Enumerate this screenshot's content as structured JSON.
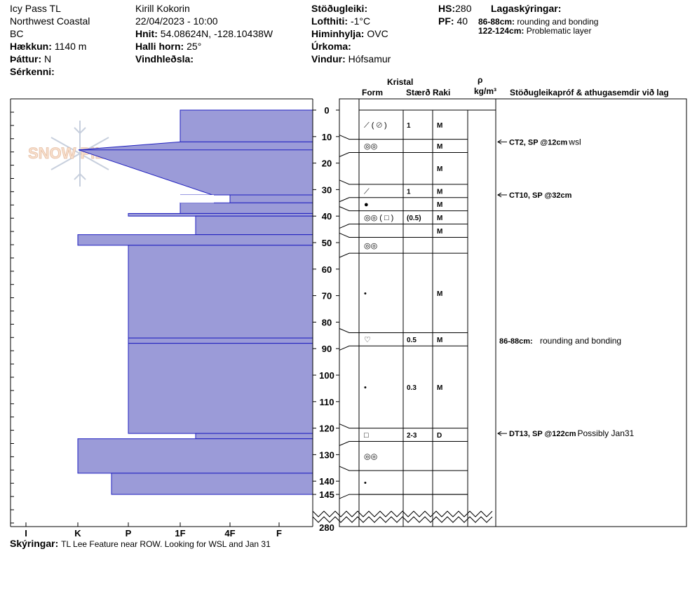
{
  "site": {
    "name": "Icy Pass TL",
    "region": "Northwest Coastal",
    "province": "BC",
    "elevation_label": "Hækkun:",
    "elevation": "1140 m",
    "aspect_label": "Þáttur:",
    "aspect": "N",
    "features_label": "Sérkenni:",
    "features": ""
  },
  "observation": {
    "observer": "Kirill Kokorin",
    "datetime": "22/04/2023 - 10:00",
    "coords_label": "Hnit:",
    "coords": "54.08624N, -128.10438W",
    "slope_label": "Halli horn:",
    "slope": "25°",
    "wind_loading_label": "Vindhleðsla:",
    "wind_loading": ""
  },
  "weather": {
    "stability_label": "Stöðugleiki:",
    "stability": "",
    "air_temp_label": "Lofthiti:",
    "air_temp": "-1°C",
    "sky_label": "Himinhylja:",
    "sky": "OVC",
    "precip_label": "Úrkoma:",
    "precip": "",
    "wind_label": "Vindur:",
    "wind": "Hófsamur"
  },
  "snowpack": {
    "hs_label": "HS:",
    "hs": "280",
    "pf_label": "PF:",
    "pf": "40"
  },
  "legend": {
    "title": "Lagaskýringar:",
    "items": [
      {
        "range": "86-88cm:",
        "text": "rounding and bonding"
      },
      {
        "range": "122-124cm:",
        "text": "Problematic layer"
      }
    ]
  },
  "table_headers": {
    "crystal": "Kristal",
    "form": "Form",
    "size": "Stærð",
    "moisture": "Raki",
    "rho": "ρ",
    "density_unit": "kg/m³",
    "tests": "Stöðugleikapróf & athugasemdir við lag"
  },
  "comments": {
    "label": "Skýringar:",
    "text": "TL Lee Feature near ROW. Looking for WSL and Jan 31"
  },
  "colors": {
    "profile_fill": "#9b9bd8",
    "profile_stroke": "#1f1fbf"
  },
  "chart_data": {
    "type": "snow_profile",
    "hardness_scale": [
      "I",
      "K",
      "P",
      "1F",
      "4F",
      "F"
    ],
    "hardness_scale_note": "Hand hardness axis; 0 = Knife (K) to 5 = Fist (F) style reversed plot, values given as index from right edge",
    "depth_ticks": [
      0,
      10,
      20,
      30,
      40,
      50,
      60,
      70,
      80,
      90,
      100,
      110,
      120,
      130,
      140,
      145
    ],
    "depth_break_label": "280",
    "depth_unit": "cm",
    "hardness_profile": [
      {
        "top": 0,
        "bottom": 12,
        "hardness": "1F"
      },
      {
        "top": 12,
        "bottom": 15,
        "hardness": "1F",
        "ramp_to": "I"
      },
      {
        "top": 15,
        "bottom": 32,
        "hardness": "4F-",
        "ramp": true
      },
      {
        "top": 32,
        "bottom": 35,
        "hardness": "4F"
      },
      {
        "top": 35,
        "bottom": 39,
        "hardness": "1F"
      },
      {
        "top": 39,
        "bottom": 40,
        "hardness": "P"
      },
      {
        "top": 40,
        "bottom": 47,
        "hardness": "1F+"
      },
      {
        "top": 47,
        "bottom": 51,
        "hardness": "K"
      },
      {
        "top": 51,
        "bottom": 86,
        "hardness": "P"
      },
      {
        "top": 86,
        "bottom": 88,
        "hardness": "P"
      },
      {
        "top": 88,
        "bottom": 122,
        "hardness": "P"
      },
      {
        "top": 122,
        "bottom": 124,
        "hardness": "1F+"
      },
      {
        "top": 124,
        "bottom": 137,
        "hardness": "K"
      },
      {
        "top": 137,
        "bottom": 145,
        "hardness": "P-"
      }
    ],
    "layers": [
      {
        "top": 0,
        "bottom": 11,
        "form": "⟋ ( ⊘ )",
        "size": "1",
        "moisture": "M"
      },
      {
        "top": 11,
        "bottom": 16,
        "form": "◎◎",
        "size": "",
        "moisture": "M"
      },
      {
        "top": 16,
        "bottom": 28,
        "form": "",
        "size": "",
        "moisture": "M"
      },
      {
        "top": 28,
        "bottom": 33,
        "form": "⟋",
        "size": "1",
        "moisture": "M"
      },
      {
        "top": 33,
        "bottom": 38,
        "form": "●",
        "size": "",
        "moisture": "M"
      },
      {
        "top": 38,
        "bottom": 43,
        "form": "◎◎ ( □ )",
        "size": "(0.5)",
        "moisture": "M"
      },
      {
        "top": 43,
        "bottom": 48,
        "form": "",
        "size": "",
        "moisture": "M"
      },
      {
        "top": 48,
        "bottom": 54,
        "form": "◎◎",
        "size": "",
        "moisture": ""
      },
      {
        "top": 54,
        "bottom": 84,
        "form": "•",
        "size": "",
        "moisture": "M"
      },
      {
        "top": 84,
        "bottom": 89,
        "form": "♡",
        "size": "0.5",
        "moisture": "M"
      },
      {
        "top": 89,
        "bottom": 120,
        "form": "•",
        "size": "0.3",
        "moisture": "M"
      },
      {
        "top": 120,
        "bottom": 125,
        "form": "□",
        "size": "2-3",
        "moisture": "D"
      },
      {
        "top": 125,
        "bottom": 136,
        "form": "◎◎",
        "size": "",
        "moisture": ""
      },
      {
        "top": 136,
        "bottom": 145,
        "form": "•",
        "size": "",
        "moisture": ""
      }
    ],
    "tests": [
      {
        "depth": 12,
        "label": "CT2, SP @12cm",
        "note": "wsl",
        "arrow": true
      },
      {
        "depth": 32,
        "label": "CT10, SP @32cm",
        "note": "",
        "arrow": true
      },
      {
        "depth": 87,
        "label": "86-88cm:",
        "note": "rounding and bonding",
        "arrow": false
      },
      {
        "depth": 122,
        "label": "DT13, SP @122cm",
        "note": "Possibly Jan31",
        "arrow": true
      }
    ]
  }
}
